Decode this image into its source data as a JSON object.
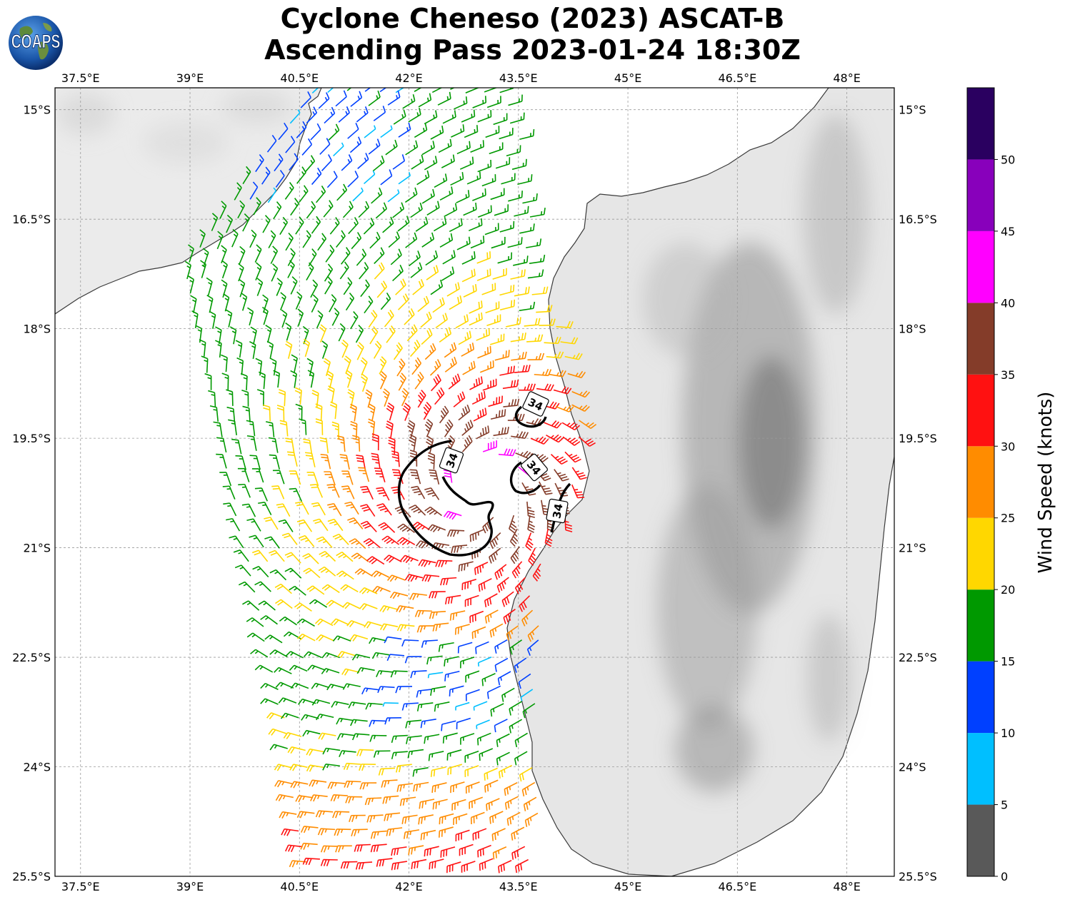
{
  "title": {
    "line1": "Cyclone Cheneso (2023) ASCAT-B",
    "line2": "Ascending Pass 2023-01-24 18:30Z"
  },
  "logo": {
    "text": "COAPS",
    "icon": "globe-logo-icon"
  },
  "map": {
    "lon_range": [
      37.15,
      48.65
    ],
    "lat_range": [
      -25.5,
      -14.7
    ],
    "lon_ticks": [
      {
        "value": 37.5,
        "label": "37.5°E"
      },
      {
        "value": 39,
        "label": "39°E"
      },
      {
        "value": 40.5,
        "label": "40.5°E"
      },
      {
        "value": 42,
        "label": "42°E"
      },
      {
        "value": 43.5,
        "label": "43.5°E"
      },
      {
        "value": 45,
        "label": "45°E"
      },
      {
        "value": 46.5,
        "label": "46.5°E"
      },
      {
        "value": 48,
        "label": "48°E"
      }
    ],
    "lat_ticks": [
      {
        "value": -15,
        "label": "15°S"
      },
      {
        "value": -16.5,
        "label": "16.5°S"
      },
      {
        "value": -18,
        "label": "18°S"
      },
      {
        "value": -19.5,
        "label": "19.5°S"
      },
      {
        "value": -21,
        "label": "21°S"
      },
      {
        "value": -22.5,
        "label": "22.5°S"
      },
      {
        "value": -24,
        "label": "24°S"
      },
      {
        "value": -25.5,
        "label": "25.5°S"
      }
    ],
    "gridlines": true,
    "cyclone_center": {
      "lon": 43.0,
      "lat": -20.2
    },
    "contour_label": "34",
    "contour_level_knots": 34
  },
  "colorbar": {
    "label": "Wind Speed (knots)",
    "ticks": [
      "0",
      "5",
      "10",
      "15",
      "20",
      "25",
      "30",
      "35",
      "40",
      "45",
      "50"
    ],
    "bins": [
      {
        "from": 0,
        "to": 5,
        "color": "#595959"
      },
      {
        "from": 5,
        "to": 10,
        "color": "#00bfff"
      },
      {
        "from": 10,
        "to": 15,
        "color": "#0040ff"
      },
      {
        "from": 15,
        "to": 20,
        "color": "#009900"
      },
      {
        "from": 20,
        "to": 25,
        "color": "#ffd700"
      },
      {
        "from": 25,
        "to": 30,
        "color": "#ff8c00"
      },
      {
        "from": 30,
        "to": 35,
        "color": "#ff1111"
      },
      {
        "from": 35,
        "to": 40,
        "color": "#843c29"
      },
      {
        "from": 40,
        "to": 45,
        "color": "#ff00ff"
      },
      {
        "from": 45,
        "to": 50,
        "color": "#8800bb"
      },
      {
        "from": 50,
        "to": 55,
        "color": "#2a0060"
      }
    ]
  }
}
